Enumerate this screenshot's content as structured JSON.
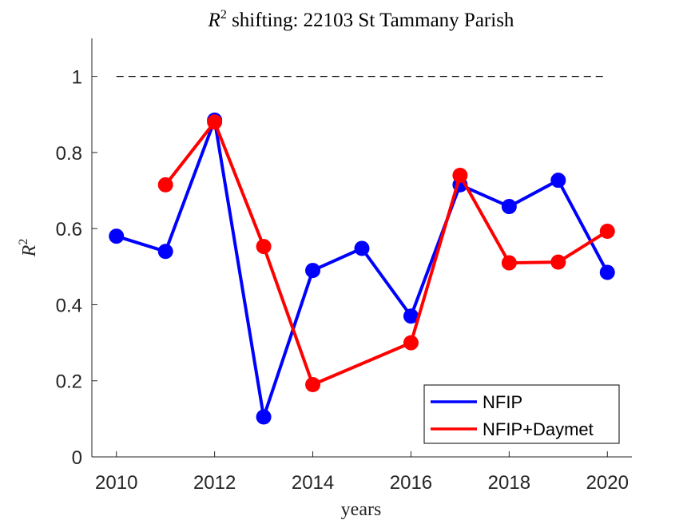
{
  "chart_data": {
    "type": "line",
    "title_prefix": "R",
    "title_superscript": "2",
    "title_rest": " shifting: 22103 St Tammany Parish",
    "xlabel": "years",
    "ylabel_base": "R",
    "ylabel_superscript": "2",
    "xlim": [
      2009.5,
      2020.5
    ],
    "ylim": [
      0,
      1.1
    ],
    "xticks": [
      2010,
      2012,
      2014,
      2016,
      2018,
      2020
    ],
    "xtick_labels": [
      "2010",
      "2012",
      "2014",
      "2016",
      "2018",
      "2020"
    ],
    "yticks": [
      0,
      0.2,
      0.4,
      0.6,
      0.8,
      1
    ],
    "ytick_labels": [
      "0",
      "0.2",
      "0.4",
      "0.6",
      "0.8",
      "1"
    ],
    "reference_line": {
      "y": 1,
      "x": [
        2010,
        2020
      ],
      "style": "dashed",
      "color": "#000000"
    },
    "legend_position": "bottom-right",
    "series": [
      {
        "name": "NFIP",
        "color": "#0000ff",
        "x": [
          2010,
          2011,
          2012,
          2013,
          2014,
          2015,
          2016,
          2017,
          2018,
          2019,
          2020
        ],
        "values": [
          0.58,
          0.54,
          0.885,
          0.105,
          0.49,
          0.548,
          0.37,
          0.715,
          0.658,
          0.727,
          0.485
        ]
      },
      {
        "name": "NFIP+Daymet",
        "color": "#ff0000",
        "x": [
          2011,
          2012,
          2013,
          2014,
          2016,
          2017,
          2018,
          2019,
          2020
        ],
        "values": [
          0.715,
          0.88,
          0.553,
          0.19,
          0.3,
          0.74,
          0.51,
          0.512,
          0.593
        ]
      }
    ]
  }
}
